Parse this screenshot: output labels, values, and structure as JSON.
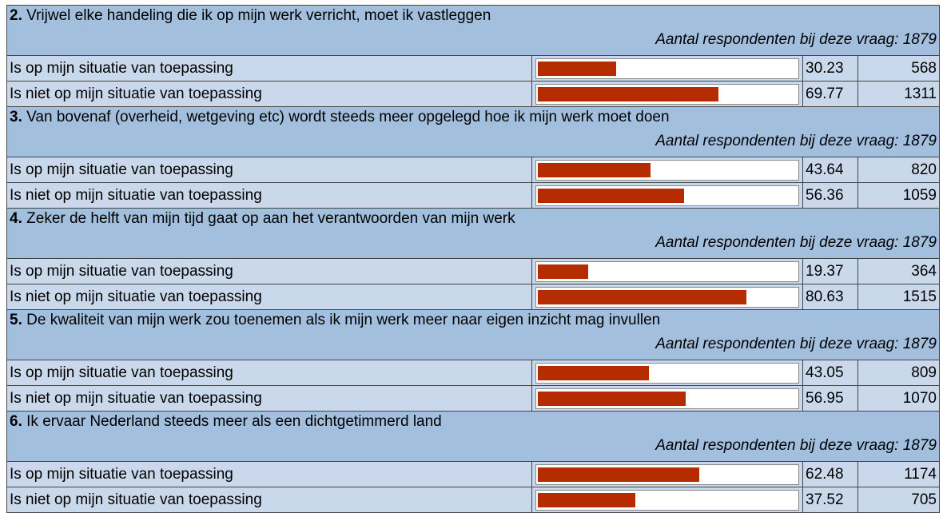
{
  "respondents_label": "Aantal respondenten bij deze vraag:",
  "questions": [
    {
      "number": "2.",
      "text": "Vrijwel elke handeling die ik op mijn werk verricht, moet ik vastleggen",
      "respondents": 1879,
      "answers": [
        {
          "label": "Is op mijn situatie van toepassing",
          "percent": 30.23,
          "count": 568
        },
        {
          "label": "Is niet op mijn situatie van toepassing",
          "percent": 69.77,
          "count": 1311
        }
      ]
    },
    {
      "number": "3.",
      "text": "Van bovenaf (overheid, wetgeving etc) wordt steeds meer opgelegd hoe ik mijn werk moet doen",
      "respondents": 1879,
      "answers": [
        {
          "label": "Is op mijn situatie van toepassing",
          "percent": 43.64,
          "count": 820
        },
        {
          "label": "Is niet op mijn situatie van toepassing",
          "percent": 56.36,
          "count": 1059
        }
      ]
    },
    {
      "number": "4.",
      "text": "Zeker de helft van mijn tijd gaat op aan het verantwoorden van mijn werk",
      "respondents": 1879,
      "answers": [
        {
          "label": "Is op mijn situatie van toepassing",
          "percent": 19.37,
          "count": 364
        },
        {
          "label": "Is niet op mijn situatie van toepassing",
          "percent": 80.63,
          "count": 1515
        }
      ]
    },
    {
      "number": "5.",
      "text": "De kwaliteit van mijn werk zou toenemen als ik mijn werk meer naar eigen inzicht mag invullen",
      "respondents": 1879,
      "answers": [
        {
          "label": "Is op mijn situatie van toepassing",
          "percent": 43.05,
          "count": 809
        },
        {
          "label": "Is niet op mijn situatie van toepassing",
          "percent": 56.95,
          "count": 1070
        }
      ]
    },
    {
      "number": "6.",
      "text": "Ik ervaar Nederland steeds meer als een dichtgetimmerd land",
      "respondents": 1879,
      "answers": [
        {
          "label": "Is op mijn situatie van toepassing",
          "percent": 62.48,
          "count": 1174
        },
        {
          "label": "Is niet op mijn situatie van toepassing",
          "percent": 37.52,
          "count": 705
        }
      ]
    }
  ]
}
